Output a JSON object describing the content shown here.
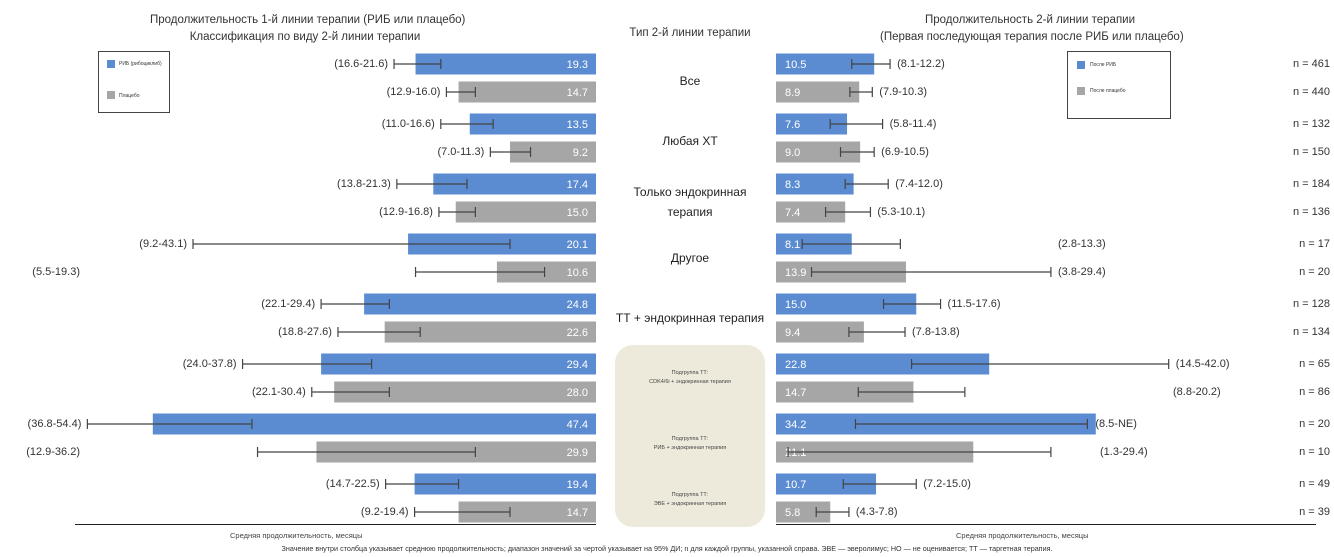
{
  "titles": {
    "left_line1": "Продолжительность 1-й линии терапии (РИБ или плацебо)",
    "left_line2": "Классификация по виду 2-й линии терапии",
    "center": "Тип 2-й линии терапии",
    "right_line1": "Продолжительность 2-й линии терапии",
    "right_line2": "(Первая последующая терапия после РИБ или плацебо)"
  },
  "legend_left": [
    {
      "label": "РИБ (рибоциклиб)",
      "color": "#5b8bd0"
    },
    {
      "label": "Плацебо",
      "color": "#a6a6a6"
    }
  ],
  "legend_right": [
    {
      "label": "После РИБ",
      "color": "#5b8bd0"
    },
    {
      "label": "После плацебо",
      "color": "#a6a6a6"
    }
  ],
  "subgroup_labels": [
    [
      "Подгруппа ТТ:",
      "CDK4/6i + эндокринная терапия"
    ],
    [
      "Подгруппа ТТ:",
      "РИБ + эндокринная терапия"
    ],
    [
      "Подгруппа ТТ:",
      "ЭВЕ + эндокринная терапия"
    ]
  ],
  "axis": {
    "left_xlabel": "Средняя продолжительность, месяцы",
    "right_xlabel": "Средняя продолжительность, месяцы"
  },
  "footnote": "Значение внутри столбца указывает среднюю продолжительность; диапазон значений за чертой указывает на 95% ДИ; n для каждой группы, указанной справа. ЭВЕ — эверолимус; НО — не оценивается; ТТ — таргетная терапия.",
  "colors": {
    "rib": "#5b8bd0",
    "placebo": "#a6a6a6",
    "subgroup_box": "#eeeadb"
  },
  "chart_data": [
    {
      "type": "bar",
      "orientation": "horizontal-reversed",
      "title": "Продолжительность 1-й линии терапии (РИБ или плацебо)",
      "subtitle": "Классификация по виду 2-й линии терапии",
      "xlabel": "Средняя продолжительность, месяцы",
      "categories": [
        "Все",
        "Любая ХТ",
        "Только эндокринная терапия",
        "Другое",
        "ТТ + эндокринная терапия",
        "CDK4/6i + эндокринная терапия",
        "РИБ + эндокринная терапия",
        "ЭВЕ + эндокринная терапия"
      ],
      "series": [
        {
          "name": "РИБ (рибоциклиб)",
          "values": [
            19.3,
            13.5,
            17.4,
            20.1,
            24.8,
            29.4,
            47.4,
            19.4
          ],
          "ci_text": [
            "(16.6-21.6)",
            "(11.0-16.6)",
            "(13.8-21.3)",
            "(9.2-43.1)",
            "(22.1-29.4)",
            "(24.0-37.8)",
            "(36.8-54.4)",
            "(14.7-22.5)"
          ],
          "ci": [
            [
              16.6,
              21.6
            ],
            [
              11.0,
              16.6
            ],
            [
              13.8,
              21.3
            ],
            [
              9.2,
              43.1
            ],
            [
              22.1,
              29.4
            ],
            [
              24.0,
              37.8
            ],
            [
              36.8,
              54.4
            ],
            [
              14.7,
              22.5
            ]
          ]
        },
        {
          "name": "Плацебо",
          "values": [
            14.7,
            9.2,
            15.0,
            10.6,
            22.6,
            28.0,
            29.9,
            14.7
          ],
          "ci_text": [
            "(12.9-16.0)",
            "(7.0-11.3)",
            "(12.9-16.8)",
            "(5.5-19.3)",
            "(18.8-27.6)",
            "(22.1-30.4)",
            "(12.9-36.2)",
            "(9.2-19.4)"
          ],
          "ci": [
            [
              12.9,
              16.0
            ],
            [
              7.0,
              11.3
            ],
            [
              12.9,
              16.8
            ],
            [
              5.5,
              19.3
            ],
            [
              18.8,
              27.6
            ],
            [
              22.1,
              30.4
            ],
            [
              12.9,
              36.2
            ],
            [
              9.2,
              19.4
            ]
          ]
        }
      ]
    },
    {
      "type": "bar",
      "orientation": "horizontal",
      "title": "Продолжительность 2-й линии терапии",
      "subtitle": "(Первая последующая терапия после РИБ или плацебо)",
      "xlabel": "Средняя продолжительность, месяцы",
      "categories": [
        "Все",
        "Любая ХТ",
        "Только эндокринная терапия",
        "Другое",
        "ТТ + эндокринная терапия",
        "CDK4/6i + эндокринная терапия",
        "РИБ + эндокринная терапия",
        "ЭВЕ + эндокринная терапия"
      ],
      "series": [
        {
          "name": "После РИБ",
          "values": [
            10.5,
            7.6,
            8.3,
            8.1,
            15.0,
            22.8,
            34.2,
            10.7
          ],
          "ci_text": [
            "(8.1-12.2)",
            "(5.8-11.4)",
            "(7.4-12.0)",
            "(2.8-13.3)",
            "(11.5-17.6)",
            "(14.5-42.0)",
            "(8.5-NE)",
            "(7.2-15.0)"
          ],
          "ci": [
            [
              8.1,
              12.2
            ],
            [
              5.8,
              11.4
            ],
            [
              7.4,
              12.0
            ],
            [
              2.8,
              13.3
            ],
            [
              11.5,
              17.6
            ],
            [
              14.5,
              42.0
            ],
            [
              8.5,
              null
            ],
            [
              7.2,
              15.0
            ]
          ],
          "n": [
            "n = 461",
            "n = 132",
            "n = 184",
            "n = 17",
            "n = 128",
            "n = 65",
            "n = 20",
            "n = 49"
          ]
        },
        {
          "name": "После плацебо",
          "values": [
            8.9,
            9.0,
            7.4,
            13.9,
            9.4,
            14.7,
            21.1,
            5.8
          ],
          "ci_text": [
            "(7.9-10.3)",
            "(6.9-10.5)",
            "(5.3-10.1)",
            "(3.8-29.4)",
            "(7.8-13.8)",
            "(8.8-20.2)",
            "(1.3-29.4)",
            "(4.3-7.8)"
          ],
          "ci": [
            [
              7.9,
              10.3
            ],
            [
              6.9,
              10.5
            ],
            [
              5.3,
              10.1
            ],
            [
              3.8,
              29.4
            ],
            [
              7.8,
              13.8
            ],
            [
              8.8,
              20.2
            ],
            [
              1.3,
              29.4
            ],
            [
              4.3,
              7.8
            ]
          ],
          "n": [
            "n = 440",
            "n = 150",
            "n = 136",
            "n = 20",
            "n = 134",
            "n = 86",
            "n = 10",
            "n = 39"
          ]
        }
      ]
    }
  ]
}
